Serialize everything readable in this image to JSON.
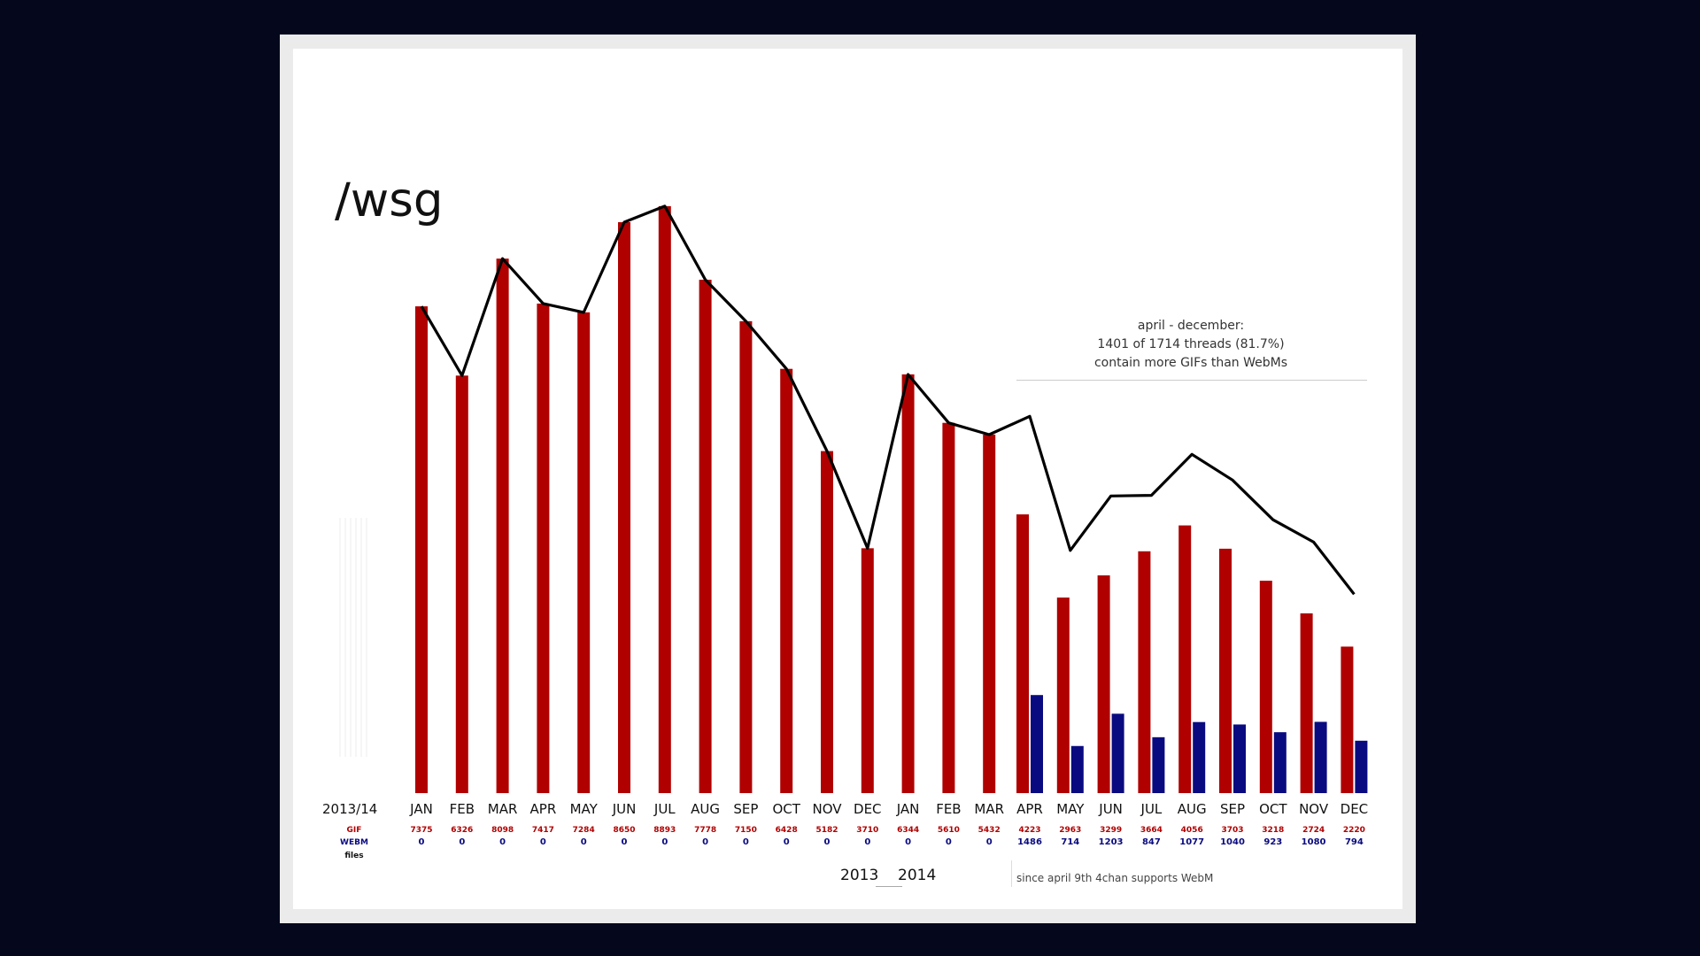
{
  "chart_data": {
    "type": "bar",
    "title": "/wsg",
    "period_label": "2013/14",
    "categories": [
      "JAN",
      "FEB",
      "MAR",
      "APR",
      "MAY",
      "JUN",
      "JUL",
      "AUG",
      "SEP",
      "OCT",
      "NOV",
      "DEC",
      "JAN",
      "FEB",
      "MAR",
      "APR",
      "MAY",
      "JUN",
      "JUL",
      "AUG",
      "SEP",
      "OCT",
      "NOV",
      "DEC"
    ],
    "series": [
      {
        "name": "GIF",
        "color": "#b00000",
        "values": [
          7375,
          6326,
          8098,
          7417,
          7284,
          8650,
          8893,
          7778,
          7150,
          6428,
          5182,
          3710,
          6344,
          5610,
          5432,
          4223,
          2963,
          3299,
          3664,
          4056,
          3703,
          3218,
          2724,
          2220
        ],
        "value_labels": [
          "7375",
          "6326",
          "8098",
          "7417",
          "7284",
          "8650",
          "8893",
          "7778",
          "7150",
          "6428",
          "5182",
          "3710",
          "6344",
          "5610",
          "5432",
          "4223",
          "2963",
          "3299",
          "3664",
          "4056",
          "3703",
          "3218",
          "2724",
          "2220"
        ]
      },
      {
        "name": "WEBM",
        "color": "#0a0a80",
        "values": [
          0,
          0,
          0,
          0,
          0,
          0,
          0,
          0,
          0,
          0,
          0,
          0,
          0,
          0,
          0,
          1486,
          714,
          1203,
          847,
          1077,
          1040,
          923,
          1080,
          794
        ],
        "value_labels": [
          "0",
          "0",
          "0",
          "0",
          "0",
          "0",
          "0",
          "0",
          "0",
          "0",
          "0",
          "0",
          "0",
          "0",
          "0",
          "1486",
          "714",
          "1203",
          "847",
          "1077",
          "1040",
          "923",
          "1080",
          "794"
        ]
      }
    ],
    "line": {
      "type": "line",
      "color": "#000000",
      "values": [
        7375,
        6326,
        8098,
        7417,
        7284,
        8650,
        8893,
        7778,
        7150,
        6428,
        5182,
        3710,
        6344,
        5610,
        5432,
        5709,
        3677,
        4502,
        4511,
        5133,
        4743,
        4141,
        3804,
        3014
      ]
    },
    "row_labels": {
      "gif": "GIF",
      "webm": "WEBM",
      "unit": "files"
    },
    "ylim": [
      0,
      9200
    ],
    "grid": false,
    "years": [
      "2013",
      "2014"
    ],
    "annotation": [
      "april - december:",
      "1401 of 1714 threads (81.7%)",
      "contain more GIFs than WebMs"
    ],
    "footnote": "since april 9th 4chan supports WebM"
  }
}
